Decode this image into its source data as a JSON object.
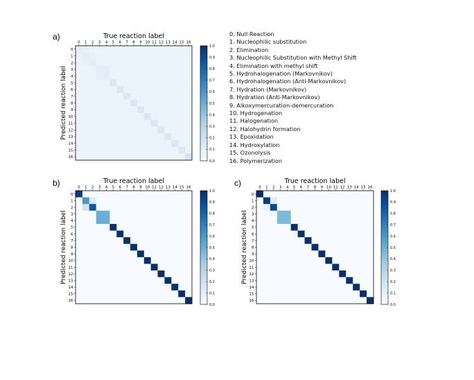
{
  "legend": [
    "0.   Null Reaction",
    "1.   Nucleophilic substitution",
    "2.   Elimination",
    "3.   Nucleophilic Substitution with Methyl Shift",
    "4.   Elimination with methyl shift",
    "5.   Hydrohalogenation (Markovnikov)",
    "6.   Hydrohalogenation (Anti-Markovnikov)",
    "7.   Hydration (Markovnikov)",
    "8.   Hydration (Anti-Markovnikov)",
    "9.   Alkoxymercuration-demercuration",
    "10. Hydrogenation",
    "11. Halogenation",
    "12. Halohydrin formation",
    "13. Epoxidation",
    "14. Hydroxylation",
    "15. Ozonolysis",
    "16. Polymerization"
  ],
  "colors": {
    "cmap": [
      "#f7fbff",
      "#deebf7",
      "#c6dbef",
      "#9ecae1",
      "#6baed6",
      "#4292c6",
      "#2171b5",
      "#08519c",
      "#08306b"
    ],
    "axis": "#000000"
  },
  "chart_data": [
    {
      "panel": "a)",
      "type": "heatmap",
      "title": "True reaction label",
      "xlabel": "True reaction label",
      "ylabel": "Predicted reaction label",
      "labels": [
        "0",
        "1",
        "2",
        "3",
        "4",
        "5",
        "6",
        "7",
        "8",
        "9",
        "10",
        "11",
        "12",
        "13",
        "14",
        "15",
        "16"
      ],
      "vmin": 0,
      "vmax": 1,
      "colorbar_ticks": [
        "0.0",
        "0.1",
        "0.2",
        "0.3",
        "0.4",
        "0.5",
        "0.6",
        "0.7",
        "0.8",
        "0.9",
        "1.0"
      ],
      "background": 0.06,
      "cells": [
        {
          "r": 0,
          "c": 0,
          "v": 0.1
        },
        {
          "r": 1,
          "c": 1,
          "v": 0.1
        },
        {
          "r": 2,
          "c": 2,
          "v": 0.1
        },
        {
          "r": 1,
          "c": 0,
          "v": 0.08
        },
        {
          "r": 0,
          "c": 1,
          "v": 0.08
        },
        {
          "r": 2,
          "c": 1,
          "v": 0.08
        },
        {
          "r": 1,
          "c": 2,
          "v": 0.08
        },
        {
          "r": 3,
          "c": 3,
          "v": 0.1
        },
        {
          "r": 3,
          "c": 4,
          "v": 0.1
        },
        {
          "r": 4,
          "c": 3,
          "v": 0.1
        },
        {
          "r": 4,
          "c": 4,
          "v": 0.1
        },
        {
          "r": 5,
          "c": 5,
          "v": 0.15
        },
        {
          "r": 6,
          "c": 6,
          "v": 0.15
        },
        {
          "r": 7,
          "c": 7,
          "v": 0.15
        },
        {
          "r": 8,
          "c": 8,
          "v": 0.15
        },
        {
          "r": 9,
          "c": 9,
          "v": 0.15
        },
        {
          "r": 10,
          "c": 10,
          "v": 0.15
        },
        {
          "r": 11,
          "c": 11,
          "v": 0.15
        },
        {
          "r": 12,
          "c": 12,
          "v": 0.15
        },
        {
          "r": 13,
          "c": 13,
          "v": 0.15
        },
        {
          "r": 14,
          "c": 14,
          "v": 0.15
        },
        {
          "r": 15,
          "c": 15,
          "v": 0.15
        },
        {
          "r": 16,
          "c": 16,
          "v": 0.18
        }
      ]
    },
    {
      "panel": "b)",
      "type": "heatmap",
      "title": "True reaction label",
      "xlabel": "True reaction label",
      "ylabel": "Predicted reaction label",
      "labels": [
        "0",
        "1",
        "2",
        "3",
        "4",
        "5",
        "6",
        "7",
        "8",
        "9",
        "10",
        "11",
        "12",
        "13",
        "14",
        "15",
        "16"
      ],
      "vmin": 0,
      "vmax": 1,
      "colorbar_ticks": [
        "0.0",
        "0.1",
        "0.2",
        "0.3",
        "0.4",
        "0.5",
        "0.6",
        "0.7",
        "0.8",
        "0.9",
        "1.0"
      ],
      "background": 0.0,
      "cells": [
        {
          "r": 0,
          "c": 0,
          "v": 0.95
        },
        {
          "r": 1,
          "c": 1,
          "v": 0.6
        },
        {
          "r": 2,
          "c": 1,
          "v": 0.2
        },
        {
          "r": 1,
          "c": 2,
          "v": 0.15
        },
        {
          "r": 2,
          "c": 2,
          "v": 0.85
        },
        {
          "r": 3,
          "c": 3,
          "v": 0.5
        },
        {
          "r": 3,
          "c": 4,
          "v": 0.5
        },
        {
          "r": 4,
          "c": 3,
          "v": 0.5
        },
        {
          "r": 4,
          "c": 4,
          "v": 0.5
        },
        {
          "r": 5,
          "c": 5,
          "v": 1.0
        },
        {
          "r": 6,
          "c": 6,
          "v": 1.0
        },
        {
          "r": 7,
          "c": 7,
          "v": 1.0
        },
        {
          "r": 8,
          "c": 8,
          "v": 1.0
        },
        {
          "r": 9,
          "c": 9,
          "v": 1.0
        },
        {
          "r": 10,
          "c": 10,
          "v": 1.0
        },
        {
          "r": 11,
          "c": 11,
          "v": 1.0
        },
        {
          "r": 12,
          "c": 12,
          "v": 1.0
        },
        {
          "r": 13,
          "c": 13,
          "v": 1.0
        },
        {
          "r": 14,
          "c": 14,
          "v": 1.0
        },
        {
          "r": 15,
          "c": 15,
          "v": 1.0
        },
        {
          "r": 16,
          "c": 16,
          "v": 1.0
        }
      ]
    },
    {
      "panel": "c)",
      "type": "heatmap",
      "title": "True reaction label",
      "xlabel": "True reaction label",
      "ylabel": "Predicted reaction label",
      "labels": [
        "0",
        "1",
        "2",
        "3",
        "4",
        "5",
        "6",
        "7",
        "8",
        "9",
        "10",
        "11",
        "12",
        "13",
        "14",
        "15",
        "16"
      ],
      "vmin": 0,
      "vmax": 1,
      "colorbar_ticks": [
        "0.0",
        "0.1",
        "0.2",
        "0.3",
        "0.4",
        "0.5",
        "0.6",
        "0.7",
        "0.8",
        "0.9",
        "1.0"
      ],
      "background": 0.0,
      "cells": [
        {
          "r": 0,
          "c": 0,
          "v": 1.0
        },
        {
          "r": 1,
          "c": 1,
          "v": 0.95
        },
        {
          "r": 1,
          "c": 2,
          "v": 0.12
        },
        {
          "r": 2,
          "c": 1,
          "v": 0.08
        },
        {
          "r": 2,
          "c": 2,
          "v": 0.9
        },
        {
          "r": 3,
          "c": 3,
          "v": 0.45
        },
        {
          "r": 3,
          "c": 4,
          "v": 0.45
        },
        {
          "r": 4,
          "c": 3,
          "v": 0.45
        },
        {
          "r": 4,
          "c": 4,
          "v": 0.45
        },
        {
          "r": 5,
          "c": 5,
          "v": 1.0
        },
        {
          "r": 6,
          "c": 6,
          "v": 1.0
        },
        {
          "r": 7,
          "c": 7,
          "v": 1.0
        },
        {
          "r": 8,
          "c": 8,
          "v": 1.0
        },
        {
          "r": 9,
          "c": 9,
          "v": 1.0
        },
        {
          "r": 10,
          "c": 10,
          "v": 1.0
        },
        {
          "r": 11,
          "c": 11,
          "v": 1.0
        },
        {
          "r": 12,
          "c": 12,
          "v": 1.0
        },
        {
          "r": 13,
          "c": 13,
          "v": 1.0
        },
        {
          "r": 14,
          "c": 14,
          "v": 1.0
        },
        {
          "r": 15,
          "c": 15,
          "v": 1.0
        },
        {
          "r": 16,
          "c": 16,
          "v": 1.0
        }
      ]
    }
  ]
}
